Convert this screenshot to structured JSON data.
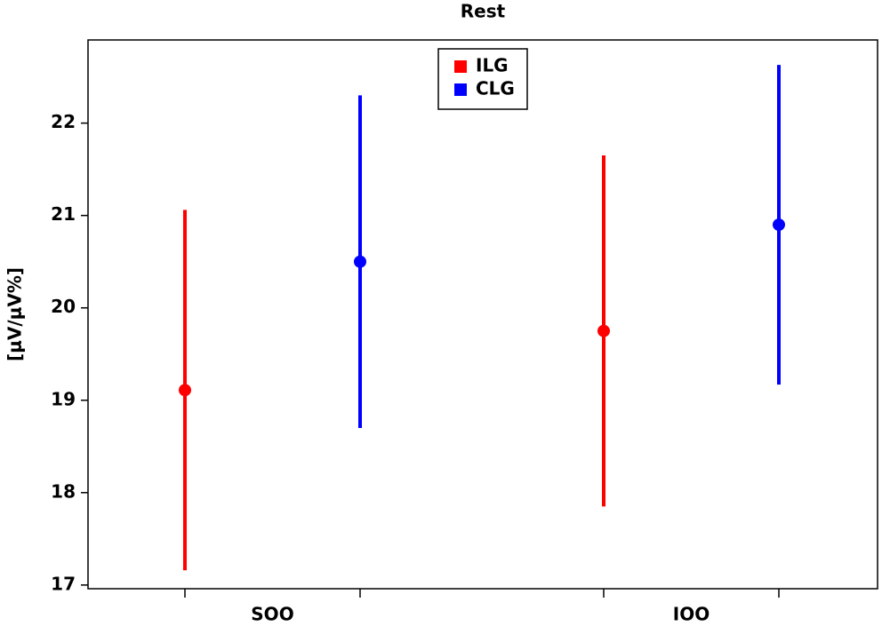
{
  "chart_data": {
    "type": "errorbar",
    "title": "Rest",
    "y_label": "[μV/μV%]",
    "categories": [
      "SOO",
      "IOO"
    ],
    "series": [
      {
        "name": "ILG",
        "color": "#ff0000",
        "values": [
          19.11,
          19.75
        ],
        "errors": [
          1.95,
          1.9
        ]
      },
      {
        "name": "CLG",
        "color": "#0000ff",
        "values": [
          20.5,
          20.9
        ],
        "errors": [
          1.8,
          1.73
        ]
      }
    ],
    "ylim": [
      16.96,
      22.9
    ],
    "yticks": [
      17,
      18,
      19,
      20,
      21,
      22
    ],
    "grid": false,
    "legend": "top"
  }
}
